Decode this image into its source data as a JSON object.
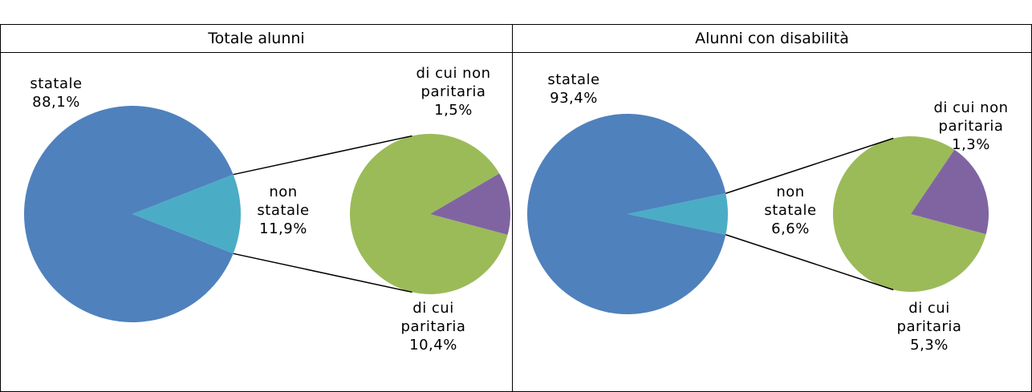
{
  "chart_data": [
    {
      "type": "pie-of-pie",
      "title": "Totale alunni",
      "categories": [
        "statale",
        "non statale"
      ],
      "values": [
        88.1,
        11.9
      ],
      "value_labels": [
        "88,1%",
        "11,9%"
      ],
      "colors": [
        "#4f81bd",
        "#4bacc6"
      ],
      "secondary": {
        "categories": [
          "di cui paritaria",
          "di cui non paritaria"
        ],
        "values": [
          10.4,
          1.5
        ],
        "value_labels": [
          "10,4%",
          "1,5%"
        ],
        "colors": [
          "#9bbb59",
          "#8064a2"
        ]
      }
    },
    {
      "type": "pie-of-pie",
      "title": "Alunni con disabilità",
      "categories": [
        "statale",
        "non statale"
      ],
      "values": [
        93.4,
        6.6
      ],
      "value_labels": [
        "93,4%",
        "6,6%"
      ],
      "colors": [
        "#4f81bd",
        "#4bacc6"
      ],
      "secondary": {
        "categories": [
          "di cui paritaria",
          "di cui non paritaria"
        ],
        "values": [
          5.3,
          1.3
        ],
        "value_labels": [
          "5,3%",
          "1,3%"
        ],
        "colors": [
          "#9bbb59",
          "#8064a2"
        ]
      }
    }
  ]
}
